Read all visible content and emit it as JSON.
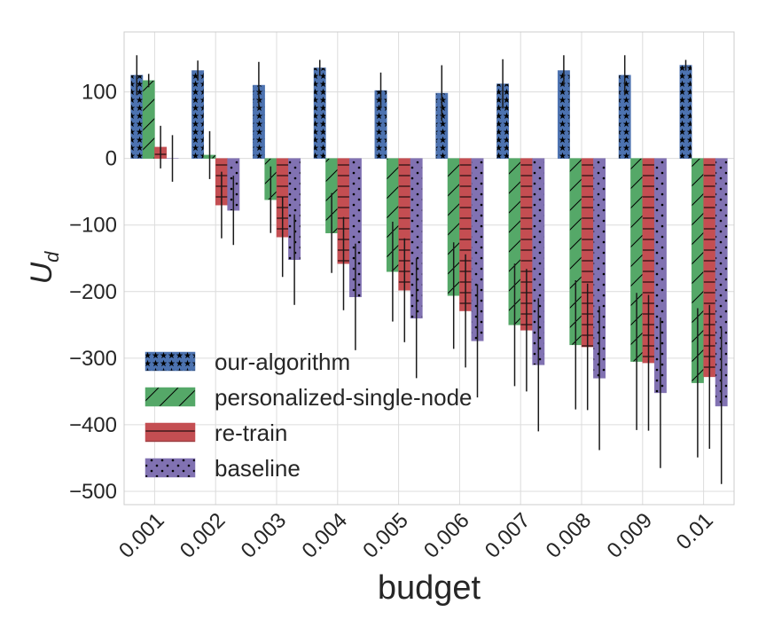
{
  "chart_data": {
    "type": "bar",
    "title": "",
    "xlabel": "budget",
    "ylabel_main": "U",
    "ylabel_sub": "d",
    "ylim": [
      -520,
      190
    ],
    "yticks": [
      100,
      0,
      -100,
      -200,
      -300,
      -400,
      -500
    ],
    "ytick_labels": [
      "100",
      "0",
      "−100",
      "−200",
      "−300",
      "−400",
      "−500"
    ],
    "categories": [
      "0.001",
      "0.002",
      "0.003",
      "0.004",
      "0.005",
      "0.006",
      "0.007",
      "0.008",
      "0.009",
      "0.01"
    ],
    "grid": true,
    "legend_position": "lower-left",
    "series": [
      {
        "name": "our-algorithm",
        "color": "#4c72b0",
        "hatch": "stars",
        "values": [
          125,
          132,
          110,
          136,
          102,
          98,
          112,
          132,
          125,
          140
        ],
        "errors": [
          30,
          15,
          35,
          12,
          27,
          42,
          37,
          23,
          30,
          8
        ]
      },
      {
        "name": "personalized-single-node",
        "color": "#55a868",
        "hatch": "diagonal",
        "values": [
          117,
          5,
          -62,
          -112,
          -170,
          -206,
          -250,
          -280,
          -305,
          -337
        ],
        "errors": [
          10,
          36,
          50,
          60,
          75,
          80,
          92,
          97,
          103,
          112
        ]
      },
      {
        "name": "re-train",
        "color": "#c44e52",
        "hatch": "horizontal",
        "values": [
          17,
          -70,
          -118,
          -158,
          -198,
          -229,
          -258,
          -283,
          -307,
          -328
        ],
        "errors": [
          32,
          50,
          60,
          70,
          78,
          85,
          92,
          95,
          102,
          108
        ]
      },
      {
        "name": "baseline",
        "color": "#8172b2",
        "hatch": "dots",
        "values": [
          0,
          -78,
          -152,
          -208,
          -240,
          -274,
          -310,
          -330,
          -352,
          -372
        ],
        "errors": [
          35,
          52,
          68,
          80,
          90,
          85,
          100,
          108,
          113,
          117
        ]
      }
    ]
  }
}
